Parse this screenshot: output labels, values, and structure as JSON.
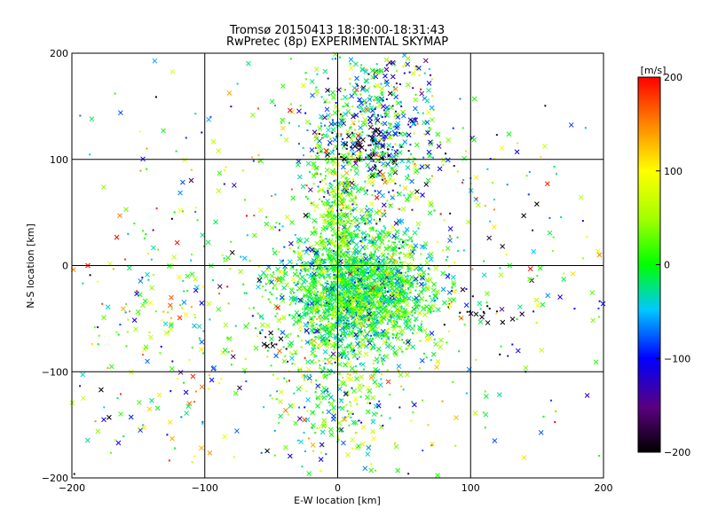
{
  "chart_data": {
    "type": "scatter",
    "title": "Tromsø 20150413 18:30:00-18:31:43",
    "subtitle": "RwPretec (8p) EXPERIMENTAL SKYMAP",
    "xlabel": "E-W location [km]",
    "ylabel": "N-S location [km]",
    "xlim": [
      -200,
      200
    ],
    "ylim": [
      -200,
      200
    ],
    "x_ticks": [
      -200,
      -100,
      0,
      100,
      200
    ],
    "y_ticks": [
      -200,
      -100,
      0,
      100,
      200
    ],
    "x_tick_labels": [
      "−200",
      "−100",
      "0",
      "100",
      "200"
    ],
    "y_tick_labels": [
      "−200",
      "−100",
      "0",
      "100",
      "200"
    ],
    "grid": true,
    "colorbar": {
      "label": "[m/s]",
      "range": [
        -200,
        200
      ],
      "ticks": [
        200,
        100,
        0,
        -100,
        -200
      ],
      "tick_labels": [
        "200",
        "100",
        "0",
        "−100",
        "−200"
      ],
      "placement": "right"
    },
    "markers": [
      "x",
      "dot"
    ],
    "clusters": [
      {
        "center": [
          15,
          -25
        ],
        "spread": [
          28,
          28
        ],
        "velocity_mean": 0,
        "velocity_spread": 45
      },
      {
        "center": [
          25,
          120
        ],
        "spread": [
          25,
          45
        ],
        "velocity_mean": -30,
        "velocity_spread": 80
      },
      {
        "center": [
          0,
          50
        ],
        "spread": [
          8,
          30
        ],
        "velocity_mean": 40,
        "velocity_spread": 40
      },
      {
        "center": [
          0,
          -120
        ],
        "spread": [
          25,
          40
        ],
        "velocity_mean": 20,
        "velocity_spread": 60
      },
      {
        "center": [
          -130,
          -70
        ],
        "spread": [
          35,
          50
        ],
        "velocity_mean": 30,
        "velocity_spread": 80
      },
      {
        "center": [
          105,
          -40
        ],
        "spread": [
          12,
          10
        ],
        "velocity_mean": -190,
        "velocity_spread": 15
      },
      {
        "center": [
          -50,
          -70
        ],
        "spread": [
          5,
          6
        ],
        "velocity_mean": -200,
        "velocity_spread": 10
      },
      {
        "center": [
          20,
          110
        ],
        "spread": [
          15,
          8
        ],
        "velocity_mean": -190,
        "velocity_spread": 15
      },
      {
        "center": [
          0,
          0
        ],
        "spread": [
          110,
          110
        ],
        "velocity_mean": 0,
        "velocity_spread": 100
      }
    ],
    "cluster_counts": [
      2200,
      700,
      250,
      300,
      120,
      20,
      10,
      40,
      600
    ],
    "extra_points": [
      {
        "x": -188,
        "y": 0,
        "v": 200
      },
      {
        "x": 145,
        "y": -3,
        "v": 200
      },
      {
        "x": 197,
        "y": 10,
        "v": 150
      },
      {
        "x": -178,
        "y": -117,
        "v": -200
      },
      {
        "x": -172,
        "y": -143,
        "v": -200
      },
      {
        "x": -165,
        "y": -167,
        "v": -110
      },
      {
        "x": 140,
        "y": 47,
        "v": -200
      },
      {
        "x": 124,
        "y": 18,
        "v": -200
      }
    ]
  }
}
